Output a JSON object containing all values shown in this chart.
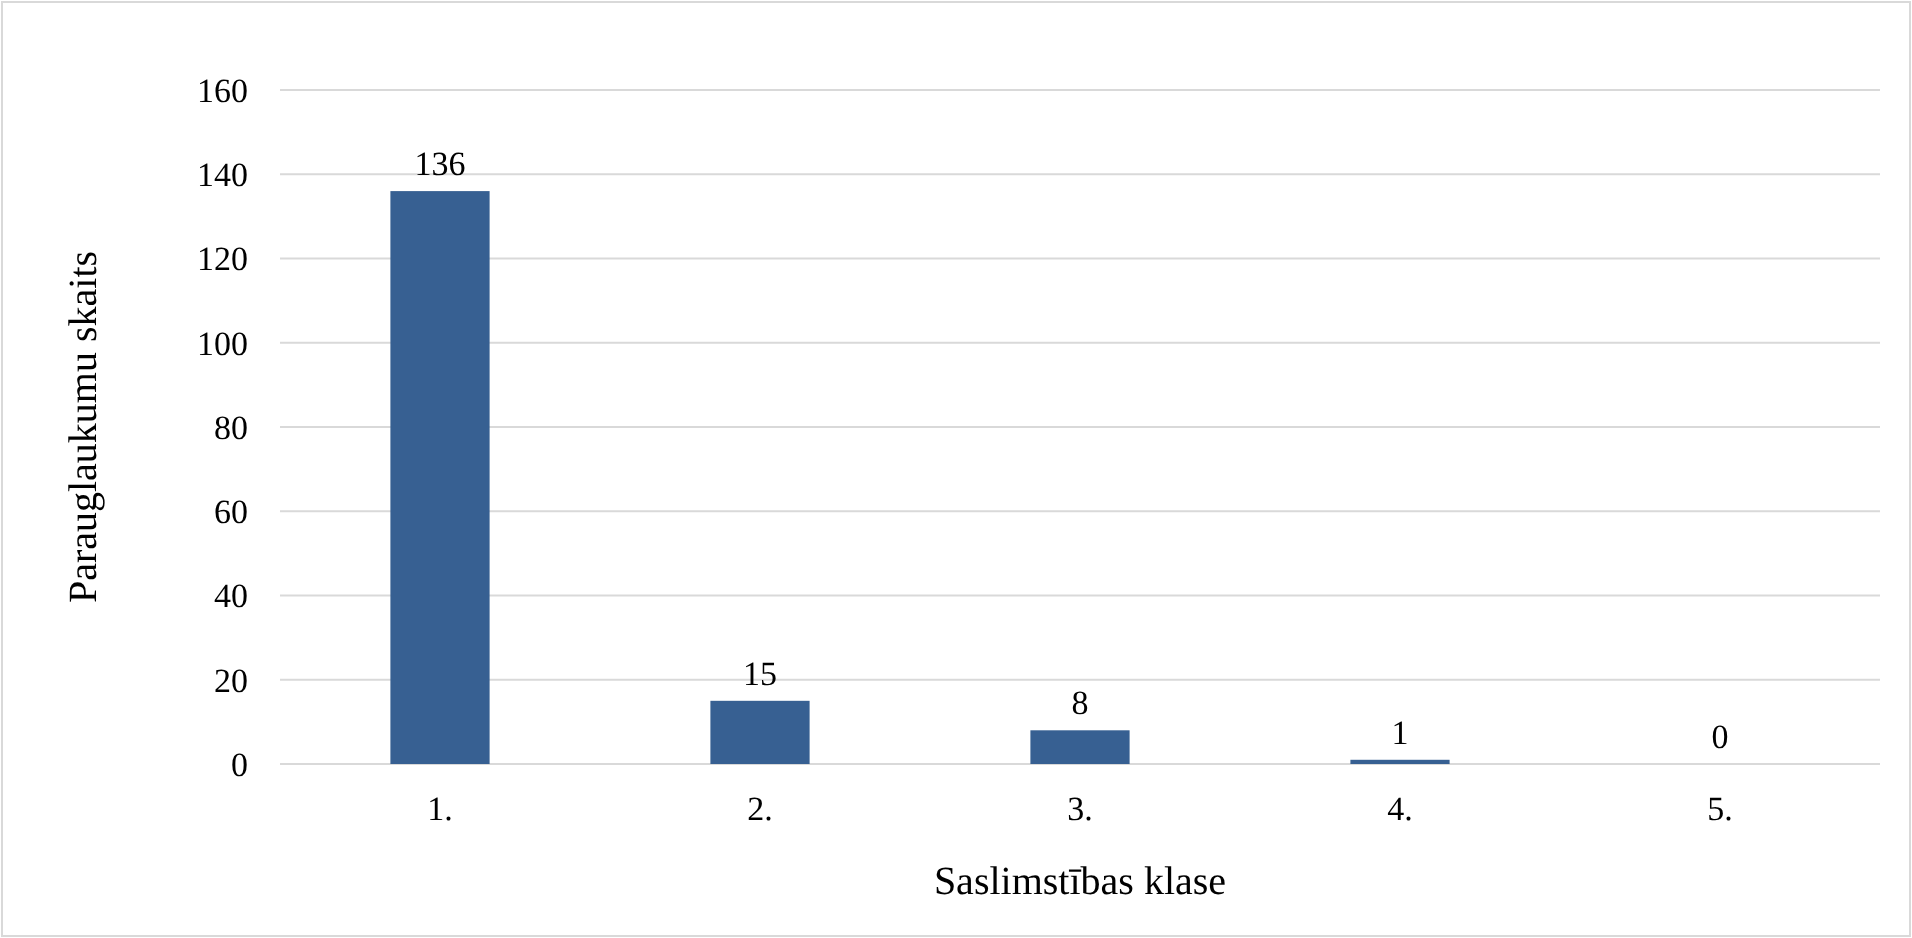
{
  "chart_data": {
    "type": "bar",
    "xlabel": "Saslimstības klase",
    "ylabel": "Parauglaukumu skaits",
    "categories": [
      "1.",
      "2.",
      "3.",
      "4.",
      "5."
    ],
    "values": [
      136,
      15,
      8,
      1,
      0
    ],
    "color": "#376092",
    "ylim": [
      0,
      160
    ],
    "yticks": [
      0,
      20,
      40,
      60,
      80,
      100,
      120,
      140,
      160
    ],
    "grid": "y",
    "data_labels": true
  }
}
